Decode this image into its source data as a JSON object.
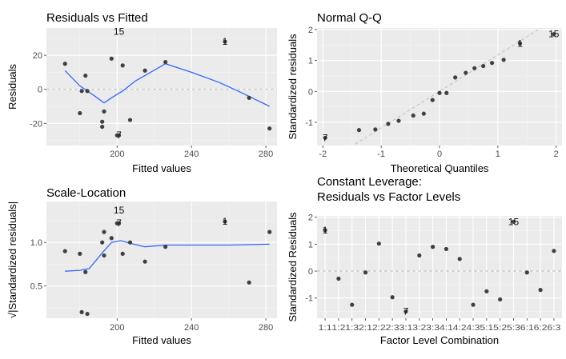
{
  "chart_data": [
    {
      "type": "scatter",
      "title": "Residuals vs Fitted",
      "xlabel": "Fitted values",
      "ylabel": "Residuals",
      "xlim": [
        162,
        286
      ],
      "ylim": [
        -33,
        36
      ],
      "xticks": [
        200,
        240,
        280
      ],
      "yticks": [
        -20,
        0,
        20
      ],
      "reference_line": 0,
      "points": [
        [
          172,
          15
        ],
        [
          180,
          -14
        ],
        [
          181,
          -1
        ],
        [
          183,
          8
        ],
        [
          184,
          -1
        ],
        [
          192,
          -19
        ],
        [
          192,
          -22
        ],
        [
          193,
          -13
        ],
        [
          197,
          18
        ],
        [
          200,
          -27
        ],
        [
          201,
          -27
        ],
        [
          203,
          14
        ],
        [
          207,
          -18
        ],
        [
          215,
          11
        ],
        [
          226,
          16
        ],
        [
          258,
          28
        ],
        [
          271,
          -5
        ],
        [
          282,
          -23
        ]
      ],
      "smooth": [
        [
          172,
          11
        ],
        [
          180,
          2
        ],
        [
          188,
          -4
        ],
        [
          193,
          -8
        ],
        [
          197,
          -5
        ],
        [
          203,
          -1
        ],
        [
          210,
          5
        ],
        [
          218,
          10
        ],
        [
          226,
          15
        ],
        [
          240,
          10
        ],
        [
          255,
          4
        ],
        [
          265,
          -1
        ],
        [
          282,
          -10
        ]
      ],
      "labeled_points": [
        {
          "x": 201,
          "y": 34,
          "label": "15"
        },
        {
          "x": 258,
          "y": 28,
          "label": "1"
        },
        {
          "x": 201,
          "y": -27,
          "label": "7"
        }
      ]
    },
    {
      "type": "scatter",
      "title": "Normal Q-Q",
      "xlabel": "Theoretical Quantiles",
      "ylabel": "Standardized residuals",
      "xlim": [
        -2.1,
        2.1
      ],
      "ylim": [
        -1.75,
        2.05
      ],
      "xticks": [
        -2,
        -1,
        0,
        1,
        2
      ],
      "yticks": [
        -1,
        0,
        1,
        2
      ],
      "reference_line": {
        "slope": 1.18,
        "intercept": 0
      },
      "points": [
        [
          -1.96,
          -1.5
        ],
        [
          -1.38,
          -1.25
        ],
        [
          -1.1,
          -1.23
        ],
        [
          -0.88,
          -1.05
        ],
        [
          -0.7,
          -0.95
        ],
        [
          -0.45,
          -0.78
        ],
        [
          -0.27,
          -0.72
        ],
        [
          -0.12,
          -0.28
        ],
        [
          0,
          -0.05
        ],
        [
          0.12,
          -0.05
        ],
        [
          0.27,
          0.45
        ],
        [
          0.45,
          0.6
        ],
        [
          0.6,
          0.75
        ],
        [
          0.75,
          0.82
        ],
        [
          0.9,
          0.92
        ],
        [
          1.1,
          1.02
        ],
        [
          1.38,
          1.55
        ],
        [
          1.96,
          1.85
        ]
      ],
      "labeled_points": [
        {
          "x": 1.96,
          "y": 1.85,
          "label": "15"
        },
        {
          "x": 1.38,
          "y": 1.55,
          "label": "1"
        },
        {
          "x": -1.96,
          "y": -1.5,
          "label": "7"
        }
      ]
    },
    {
      "type": "scatter",
      "title": "Scale-Location",
      "xlabel": "Fitted values",
      "ylabel": "√|Standardized residuals|",
      "xlim": [
        162,
        286
      ],
      "ylim": [
        0.13,
        1.47
      ],
      "xticks": [
        200,
        240,
        280
      ],
      "yticks": [
        0.5,
        1.0
      ],
      "points": [
        [
          172,
          0.9
        ],
        [
          180,
          0.87
        ],
        [
          181,
          0.2
        ],
        [
          183,
          0.66
        ],
        [
          184,
          0.18
        ],
        [
          192,
          1.0
        ],
        [
          193,
          1.12
        ],
        [
          193,
          0.85
        ],
        [
          197,
          1.05
        ],
        [
          200,
          1.22
        ],
        [
          201,
          1.22
        ],
        [
          203,
          0.87
        ],
        [
          207,
          1.0
        ],
        [
          215,
          0.78
        ],
        [
          226,
          0.95
        ],
        [
          258,
          1.24
        ],
        [
          271,
          0.54
        ],
        [
          282,
          1.12
        ]
      ],
      "smooth": [
        [
          172,
          0.67
        ],
        [
          180,
          0.68
        ],
        [
          185,
          0.7
        ],
        [
          192,
          0.88
        ],
        [
          197,
          1.0
        ],
        [
          202,
          1.02
        ],
        [
          207,
          0.99
        ],
        [
          215,
          0.95
        ],
        [
          226,
          0.97
        ],
        [
          240,
          0.97
        ],
        [
          260,
          0.97
        ],
        [
          282,
          0.98
        ]
      ],
      "labeled_points": [
        {
          "x": 201,
          "y": 1.37,
          "label": "15"
        },
        {
          "x": 258,
          "y": 1.24,
          "label": "1"
        },
        {
          "x": 201,
          "y": 1.22,
          "label": "7"
        }
      ]
    },
    {
      "type": "scatter",
      "title": "Constant Leverage:",
      "subtitle": "Residuals vs Factor Levels",
      "xlabel": "Factor Level Combination",
      "ylabel": "Standardized Residuals",
      "ylim": [
        -1.75,
        2.05
      ],
      "yticks": [
        -1,
        0,
        1,
        2
      ],
      "reference_line": 0,
      "categories": [
        "1:1",
        "1:2",
        "1:3",
        "2:1",
        "2:2",
        "2:3",
        "3:1",
        "3:2",
        "3:3",
        "4:1",
        "4:2",
        "4:3",
        "5:1",
        "5:2",
        "5:3",
        "6:1",
        "6:2",
        "6:3"
      ],
      "values": [
        1.52,
        -0.28,
        -1.25,
        -0.05,
        1.02,
        -0.97,
        -1.5,
        0.58,
        0.9,
        0.82,
        0.45,
        -1.25,
        -0.75,
        -1.05,
        1.83,
        -0.05,
        -0.7,
        0.75
      ],
      "labeled_points": [
        {
          "index": 14,
          "label": "15"
        },
        {
          "index": 0,
          "label": "1"
        },
        {
          "index": 6,
          "label": "7"
        }
      ]
    }
  ]
}
